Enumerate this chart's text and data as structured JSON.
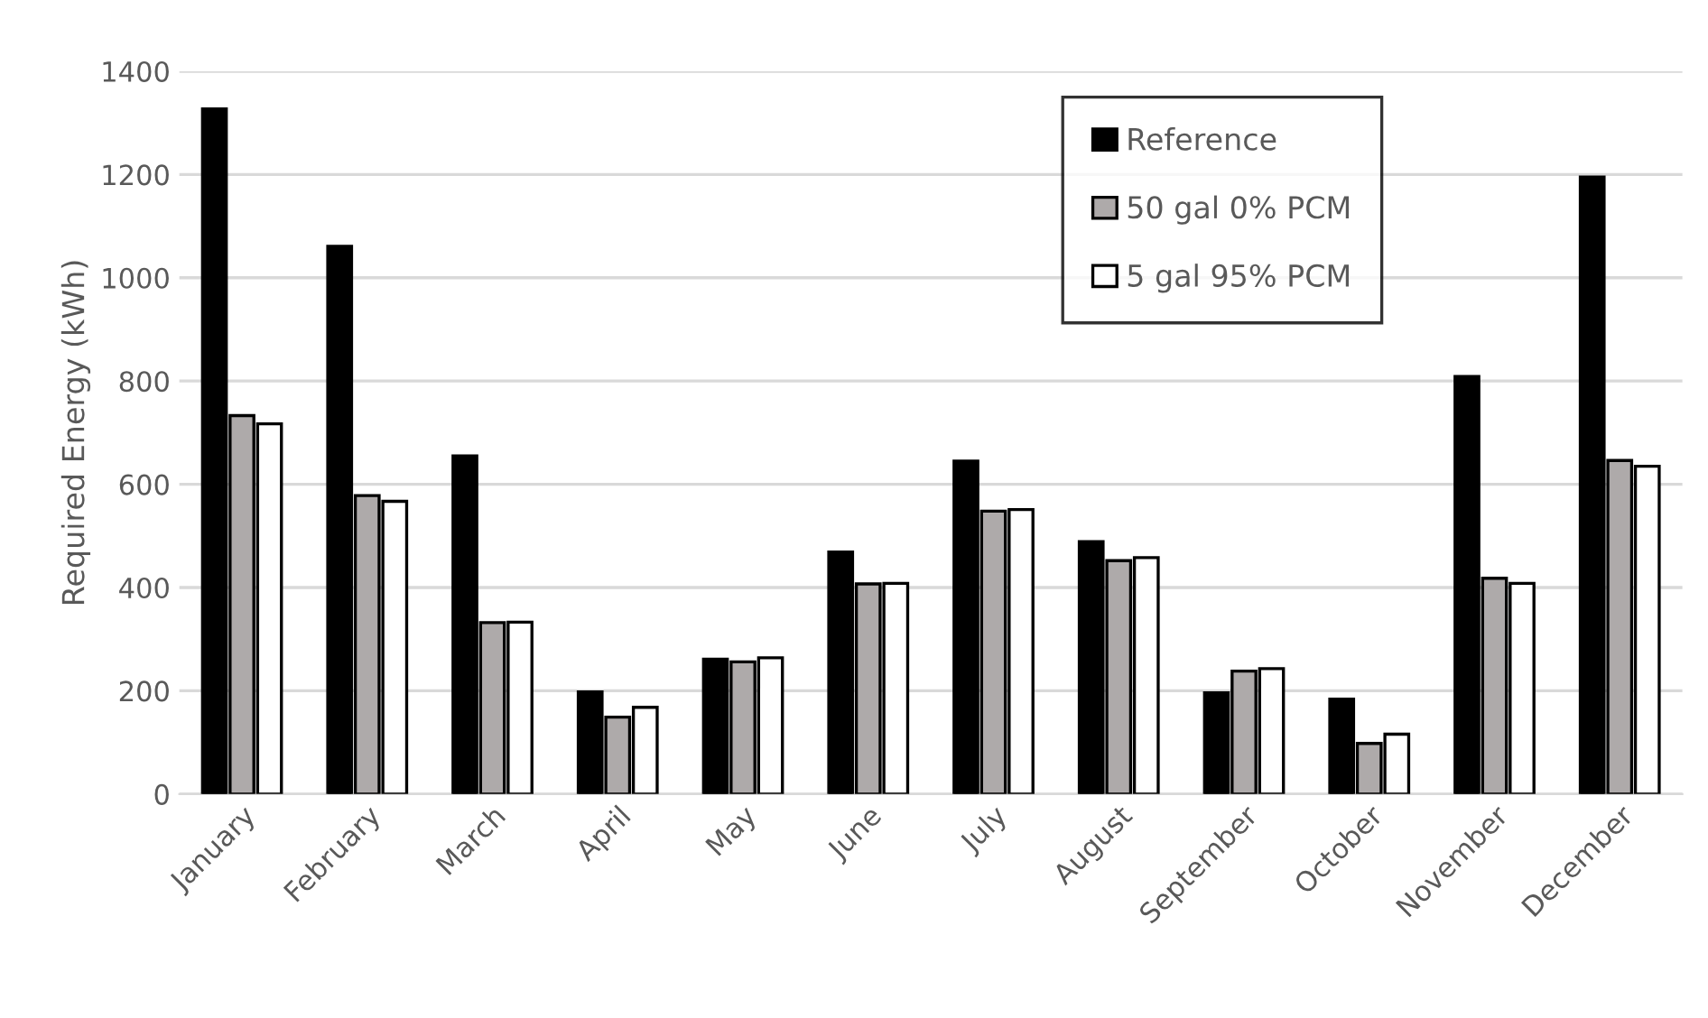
{
  "chart_data": {
    "type": "bar",
    "ylabel": "Required Energy (kWh)",
    "categories": [
      "January",
      "February",
      "March",
      "April",
      "May",
      "June",
      "July",
      "August",
      "September",
      "October",
      "November",
      "December"
    ],
    "series": [
      {
        "name": "Reference",
        "color": "#000000",
        "values": [
          1327,
          1061,
          655,
          198,
          261,
          469,
          645,
          489,
          196,
          184,
          809,
          1195
        ]
      },
      {
        "name": "50 gal 0% PCM",
        "color": "#aeaaaa",
        "values": [
          733,
          578,
          332,
          149,
          256,
          407,
          548,
          452,
          238,
          98,
          418,
          646
        ]
      },
      {
        "name": "5 gal 95% PCM",
        "color": "#ffffff",
        "values": [
          717,
          567,
          333,
          168,
          264,
          408,
          551,
          458,
          243,
          116,
          408,
          635
        ]
      }
    ],
    "ylim": [
      0,
      1400
    ],
    "yticks": [
      0,
      200,
      400,
      600,
      800,
      1000,
      1200,
      1400
    ],
    "grid": "y",
    "legend": "top right"
  }
}
